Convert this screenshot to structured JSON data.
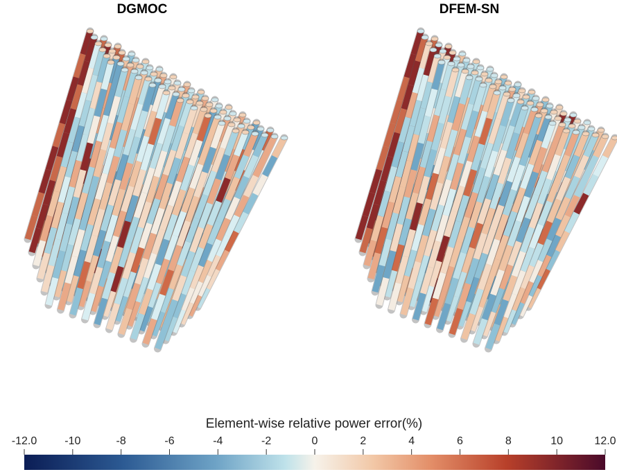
{
  "panels": [
    {
      "title": "DGMOC"
    },
    {
      "title": "DFEM-SN"
    }
  ],
  "colorbar": {
    "title": "Element-wise relative power error(%)",
    "lim": [
      -12,
      12
    ],
    "ticks": [
      {
        "value": -12,
        "label": "-12.0"
      },
      -10,
      -8,
      -6,
      -4,
      -2,
      0,
      2,
      4,
      6,
      8,
      10,
      {
        "value": 12,
        "label": "12.0"
      }
    ]
  }
}
